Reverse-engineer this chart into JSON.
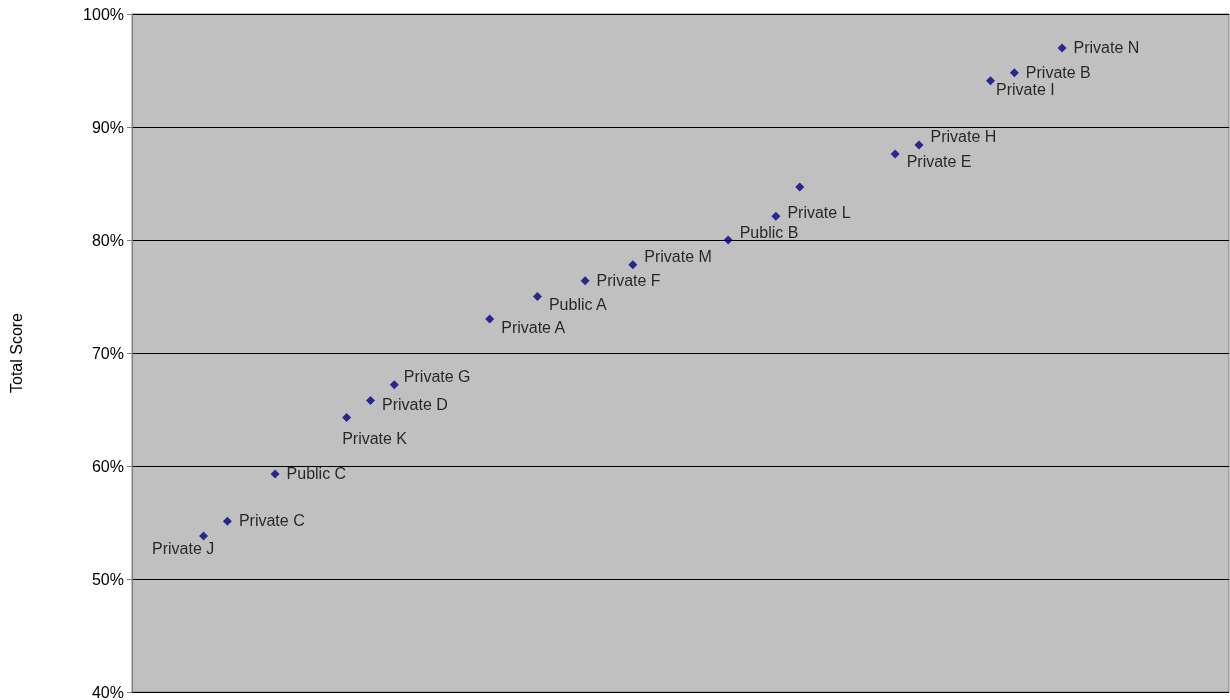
{
  "chart_data": {
    "type": "scatter",
    "ylabel": "Total Score",
    "marker": "diamond",
    "grid": "y",
    "tick_labels": "y",
    "categories": [
      null,
      null,
      null,
      null,
      null,
      null,
      null,
      null,
      null,
      null,
      null,
      null,
      null,
      null,
      null,
      null,
      null,
      null,
      null,
      null,
      null,
      null,
      null,
      null,
      null,
      null,
      null,
      null,
      null,
      null,
      null,
      null,
      null,
      null,
      null,
      null,
      null,
      null,
      null,
      null,
      null,
      null,
      null,
      null,
      null,
      null,
      null
    ],
    "ylim": [
      40,
      100
    ],
    "yticks": [
      {
        "value": 40,
        "label": "40%"
      },
      {
        "value": 50,
        "label": "50%"
      },
      {
        "value": 60,
        "label": "60%"
      },
      {
        "value": 70,
        "label": "70%"
      },
      {
        "value": 80,
        "label": "80%"
      },
      {
        "value": 90,
        "label": "90%"
      },
      {
        "value": 100,
        "label": "100%"
      }
    ],
    "series": [
      {
        "name": "Private J",
        "color": "#000080",
        "values": [
          null,
          null,
          null,
          53.8,
          null,
          null,
          null,
          null,
          null,
          null,
          null,
          null,
          null,
          null,
          null,
          null,
          null,
          null,
          null,
          null,
          null,
          null,
          null,
          null,
          null,
          null,
          null,
          null,
          null,
          null,
          null,
          null,
          null,
          null,
          null,
          null,
          null,
          null,
          null,
          null,
          null,
          null,
          null,
          null,
          null,
          null,
          null
        ]
      },
      {
        "name": "Private C",
        "color": "#000080",
        "values": [
          null,
          null,
          null,
          null,
          55.1,
          null,
          null,
          null,
          null,
          null,
          null,
          null,
          null,
          null,
          null,
          null,
          null,
          null,
          null,
          null,
          null,
          null,
          null,
          null,
          null,
          null,
          null,
          null,
          null,
          null,
          null,
          null,
          null,
          null,
          null,
          null,
          null,
          null,
          null,
          null,
          null,
          null,
          null,
          null,
          null,
          null,
          null
        ]
      },
      {
        "name": "Public C",
        "color": "#000080",
        "values": [
          null,
          null,
          null,
          null,
          null,
          null,
          59.3,
          null,
          null,
          null,
          null,
          null,
          null,
          null,
          null,
          null,
          null,
          null,
          null,
          null,
          null,
          null,
          null,
          null,
          null,
          null,
          null,
          null,
          null,
          null,
          null,
          null,
          null,
          null,
          null,
          null,
          null,
          null,
          null,
          null,
          null,
          null,
          null,
          null,
          null,
          null,
          null
        ]
      },
      {
        "name": "Private K",
        "color": "#000080",
        "values": [
          null,
          null,
          null,
          null,
          null,
          null,
          null,
          null,
          null,
          64.3,
          null,
          null,
          null,
          null,
          null,
          null,
          null,
          null,
          null,
          null,
          null,
          null,
          null,
          null,
          null,
          null,
          null,
          null,
          null,
          null,
          null,
          null,
          null,
          null,
          null,
          null,
          null,
          null,
          null,
          null,
          null,
          null,
          null,
          null,
          null,
          null,
          null
        ]
      },
      {
        "name": "Private D",
        "color": "#000080",
        "values": [
          null,
          null,
          null,
          null,
          null,
          null,
          null,
          null,
          null,
          null,
          65.8,
          null,
          null,
          null,
          null,
          null,
          null,
          null,
          null,
          null,
          null,
          null,
          null,
          null,
          null,
          null,
          null,
          null,
          null,
          null,
          null,
          null,
          null,
          null,
          null,
          null,
          null,
          null,
          null,
          null,
          null,
          null,
          null,
          null,
          null,
          null,
          null
        ]
      },
      {
        "name": "Private G",
        "color": "#000080",
        "values": [
          null,
          null,
          null,
          null,
          null,
          null,
          null,
          null,
          null,
          null,
          null,
          67.2,
          null,
          null,
          null,
          null,
          null,
          null,
          null,
          null,
          null,
          null,
          null,
          null,
          null,
          null,
          null,
          null,
          null,
          null,
          null,
          null,
          null,
          null,
          null,
          null,
          null,
          null,
          null,
          null,
          null,
          null,
          null,
          null,
          null,
          null,
          null
        ]
      },
      {
        "name": "Private A",
        "color": "#000080",
        "values": [
          null,
          null,
          null,
          null,
          null,
          null,
          null,
          null,
          null,
          null,
          null,
          null,
          null,
          null,
          null,
          73.0,
          null,
          null,
          null,
          null,
          null,
          null,
          null,
          null,
          null,
          null,
          null,
          null,
          null,
          null,
          null,
          null,
          null,
          null,
          null,
          null,
          null,
          null,
          null,
          null,
          null,
          null,
          null,
          null,
          null,
          null,
          null
        ]
      },
      {
        "name": "Public A",
        "color": "#000080",
        "values": [
          null,
          null,
          null,
          null,
          null,
          null,
          null,
          null,
          null,
          null,
          null,
          null,
          null,
          null,
          null,
          null,
          null,
          75.0,
          null,
          null,
          null,
          null,
          null,
          null,
          null,
          null,
          null,
          null,
          null,
          null,
          null,
          null,
          null,
          null,
          null,
          null,
          null,
          null,
          null,
          null,
          null,
          null,
          null,
          null,
          null,
          null,
          null
        ]
      },
      {
        "name": "Private F",
        "color": "#000080",
        "values": [
          null,
          null,
          null,
          null,
          null,
          null,
          null,
          null,
          null,
          null,
          null,
          null,
          null,
          null,
          null,
          null,
          null,
          null,
          null,
          76.4,
          null,
          null,
          null,
          null,
          null,
          null,
          null,
          null,
          null,
          null,
          null,
          null,
          null,
          null,
          null,
          null,
          null,
          null,
          null,
          null,
          null,
          null,
          null,
          null,
          null,
          null,
          null
        ]
      },
      {
        "name": "Private M",
        "color": "#000080",
        "values": [
          null,
          null,
          null,
          null,
          null,
          null,
          null,
          null,
          null,
          null,
          null,
          null,
          null,
          null,
          null,
          null,
          null,
          null,
          null,
          null,
          null,
          77.8,
          null,
          null,
          null,
          null,
          null,
          null,
          null,
          null,
          null,
          null,
          null,
          null,
          null,
          null,
          null,
          null,
          null,
          null,
          null,
          null,
          null,
          null,
          null,
          null,
          null
        ]
      },
      {
        "name": "Public B",
        "color": "#000080",
        "values": [
          null,
          null,
          null,
          null,
          null,
          null,
          null,
          null,
          null,
          null,
          null,
          null,
          null,
          null,
          null,
          null,
          null,
          null,
          null,
          null,
          null,
          null,
          null,
          null,
          null,
          80.0,
          null,
          null,
          null,
          null,
          null,
          null,
          null,
          null,
          null,
          null,
          null,
          null,
          null,
          null,
          null,
          null,
          null,
          null,
          null,
          null,
          null
        ]
      },
      {
        "name": "Private L",
        "color": "#000080",
        "values": [
          null,
          null,
          null,
          null,
          null,
          null,
          null,
          null,
          null,
          null,
          null,
          null,
          null,
          null,
          null,
          null,
          null,
          null,
          null,
          null,
          null,
          null,
          null,
          null,
          null,
          null,
          null,
          82.1,
          null,
          null,
          null,
          null,
          null,
          null,
          null,
          null,
          null,
          null,
          null,
          null,
          null,
          null,
          null,
          null,
          null,
          null,
          null
        ]
      },
      {
        "color": "#000080",
        "values": [
          null,
          null,
          null,
          null,
          null,
          null,
          null,
          null,
          null,
          null,
          null,
          null,
          null,
          null,
          null,
          null,
          null,
          null,
          null,
          null,
          null,
          null,
          null,
          null,
          null,
          null,
          null,
          null,
          84.7,
          null,
          null,
          null,
          null,
          null,
          null,
          null,
          null,
          null,
          null,
          null,
          null,
          null,
          null,
          null,
          null,
          null,
          null
        ]
      },
      {
        "name": "Private E",
        "color": "#000080",
        "values": [
          null,
          null,
          null,
          null,
          null,
          null,
          null,
          null,
          null,
          null,
          null,
          null,
          null,
          null,
          null,
          null,
          null,
          null,
          null,
          null,
          null,
          null,
          null,
          null,
          null,
          null,
          null,
          null,
          null,
          null,
          null,
          null,
          87.6,
          null,
          null,
          null,
          null,
          null,
          null,
          null,
          null,
          null,
          null,
          null,
          null,
          null,
          null
        ]
      },
      {
        "name": "Private H",
        "color": "#000080",
        "values": [
          null,
          null,
          null,
          null,
          null,
          null,
          null,
          null,
          null,
          null,
          null,
          null,
          null,
          null,
          null,
          null,
          null,
          null,
          null,
          null,
          null,
          null,
          null,
          null,
          null,
          null,
          null,
          null,
          null,
          null,
          null,
          null,
          null,
          88.4,
          null,
          null,
          null,
          null,
          null,
          null,
          null,
          null,
          null,
          null,
          null,
          null,
          null
        ]
      },
      {
        "name": "Private I",
        "color": "#000080",
        "values": [
          null,
          null,
          null,
          null,
          null,
          null,
          null,
          null,
          null,
          null,
          null,
          null,
          null,
          null,
          null,
          null,
          null,
          null,
          null,
          null,
          null,
          null,
          null,
          null,
          null,
          null,
          null,
          null,
          null,
          null,
          null,
          null,
          null,
          null,
          null,
          null,
          94.1,
          null,
          null,
          null,
          null,
          null,
          null,
          null,
          null,
          null,
          null
        ]
      },
      {
        "name": "Private B",
        "color": "#000080",
        "values": [
          null,
          null,
          null,
          null,
          null,
          null,
          null,
          null,
          null,
          null,
          null,
          null,
          null,
          null,
          null,
          null,
          null,
          null,
          null,
          null,
          null,
          null,
          null,
          null,
          null,
          null,
          null,
          null,
          null,
          null,
          null,
          null,
          null,
          null,
          null,
          null,
          null,
          94.8,
          null,
          null,
          null,
          null,
          null,
          null,
          null,
          null,
          null
        ]
      },
      {
        "name": "Private N",
        "color": "#000080",
        "values": [
          null,
          null,
          null,
          null,
          null,
          null,
          null,
          null,
          null,
          null,
          null,
          null,
          null,
          null,
          null,
          null,
          null,
          null,
          null,
          null,
          null,
          null,
          null,
          null,
          null,
          null,
          null,
          null,
          null,
          null,
          null,
          null,
          null,
          null,
          null,
          null,
          null,
          null,
          null,
          97.0,
          null,
          null,
          null,
          null,
          null,
          null,
          null
        ]
      }
    ]
  }
}
